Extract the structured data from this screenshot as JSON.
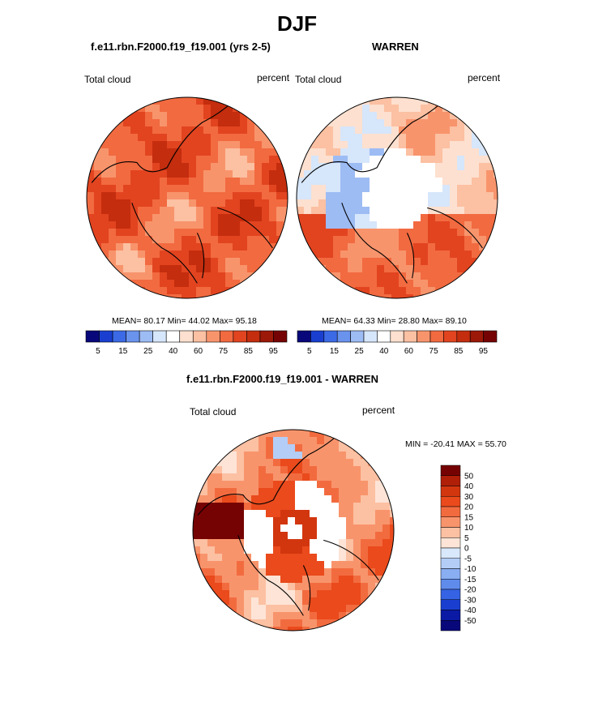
{
  "page": {
    "title": "DJF"
  },
  "panels": [
    {
      "id": "model",
      "title": "f.e11.rbn.F2000.f19_f19.001 (yrs 2-5)",
      "left_label": "Total cloud",
      "right_label": "percent",
      "stats": "MEAN=  80.17  Min=  44.02  Max=  95.18",
      "colorbar_ticks": [
        "5",
        "15",
        "25",
        "40",
        "60",
        "75",
        "85",
        "95"
      ]
    },
    {
      "id": "obs",
      "title": "WARREN",
      "left_label": "Total cloud",
      "right_label": "percent",
      "stats": "MEAN=  64.33  Min=  28.80  Max=  89.10",
      "colorbar_ticks": [
        "5",
        "15",
        "25",
        "40",
        "60",
        "75",
        "85",
        "95"
      ]
    },
    {
      "id": "diff",
      "title": "f.e11.rbn.F2000.f19_f19.001 - WARREN",
      "left_label": "Total cloud",
      "right_label": "percent",
      "stats": "MIN = -20.41  MAX =  55.70",
      "colorbar_ticks": [
        "50",
        "40",
        "30",
        "20",
        "15",
        "10",
        "5",
        "0",
        "-5",
        "-10",
        "-15",
        "-20",
        "-30",
        "-40",
        "-50"
      ]
    }
  ],
  "colors": {
    "abs_scale": [
      "#08087a",
      "#1a3fd0",
      "#3c6ae6",
      "#6a93ee",
      "#9dbcf4",
      "#d6e6fb",
      "#ffffff",
      "#fde0cf",
      "#fcc0a2",
      "#f8946c",
      "#f26a40",
      "#e24420",
      "#c42d0e",
      "#9c1808",
      "#760303"
    ],
    "diff_scale": [
      "#760303",
      "#b01f08",
      "#d2360f",
      "#ea4a1c",
      "#f26b3f",
      "#f8946c",
      "#fcc0a2",
      "#fde4d6",
      "#d9e8fb",
      "#b3cdf7",
      "#8aaef2",
      "#5f8beb",
      "#3563e3",
      "#1a3fd0",
      "#0a1aa5",
      "#08087a"
    ]
  },
  "chart_data": [
    {
      "type": "heatmap",
      "title": "f.e11.rbn.F2000.f19_f19.001 (yrs 2-5)",
      "variable": "Total cloud",
      "units": "percent",
      "projection": "north polar stereographic",
      "season": "DJF",
      "mean": 80.17,
      "min": 44.02,
      "max": 95.18,
      "levels": [
        5,
        10,
        15,
        20,
        25,
        30,
        40,
        50,
        60,
        70,
        75,
        80,
        85,
        90,
        95
      ]
    },
    {
      "type": "heatmap",
      "title": "WARREN",
      "variable": "Total cloud",
      "units": "percent",
      "projection": "north polar stereographic",
      "season": "DJF",
      "mean": 64.33,
      "min": 28.8,
      "max": 89.1,
      "levels": [
        5,
        10,
        15,
        20,
        25,
        30,
        40,
        50,
        60,
        70,
        75,
        80,
        85,
        90,
        95
      ]
    },
    {
      "type": "heatmap",
      "title": "f.e11.rbn.F2000.f19_f19.001 - WARREN",
      "variable": "Total cloud",
      "units": "percent",
      "projection": "north polar stereographic",
      "season": "DJF",
      "min": -20.41,
      "max": 55.7,
      "levels": [
        -50,
        -40,
        -30,
        -20,
        -15,
        -10,
        -5,
        0,
        5,
        10,
        15,
        20,
        30,
        40,
        50
      ]
    }
  ]
}
